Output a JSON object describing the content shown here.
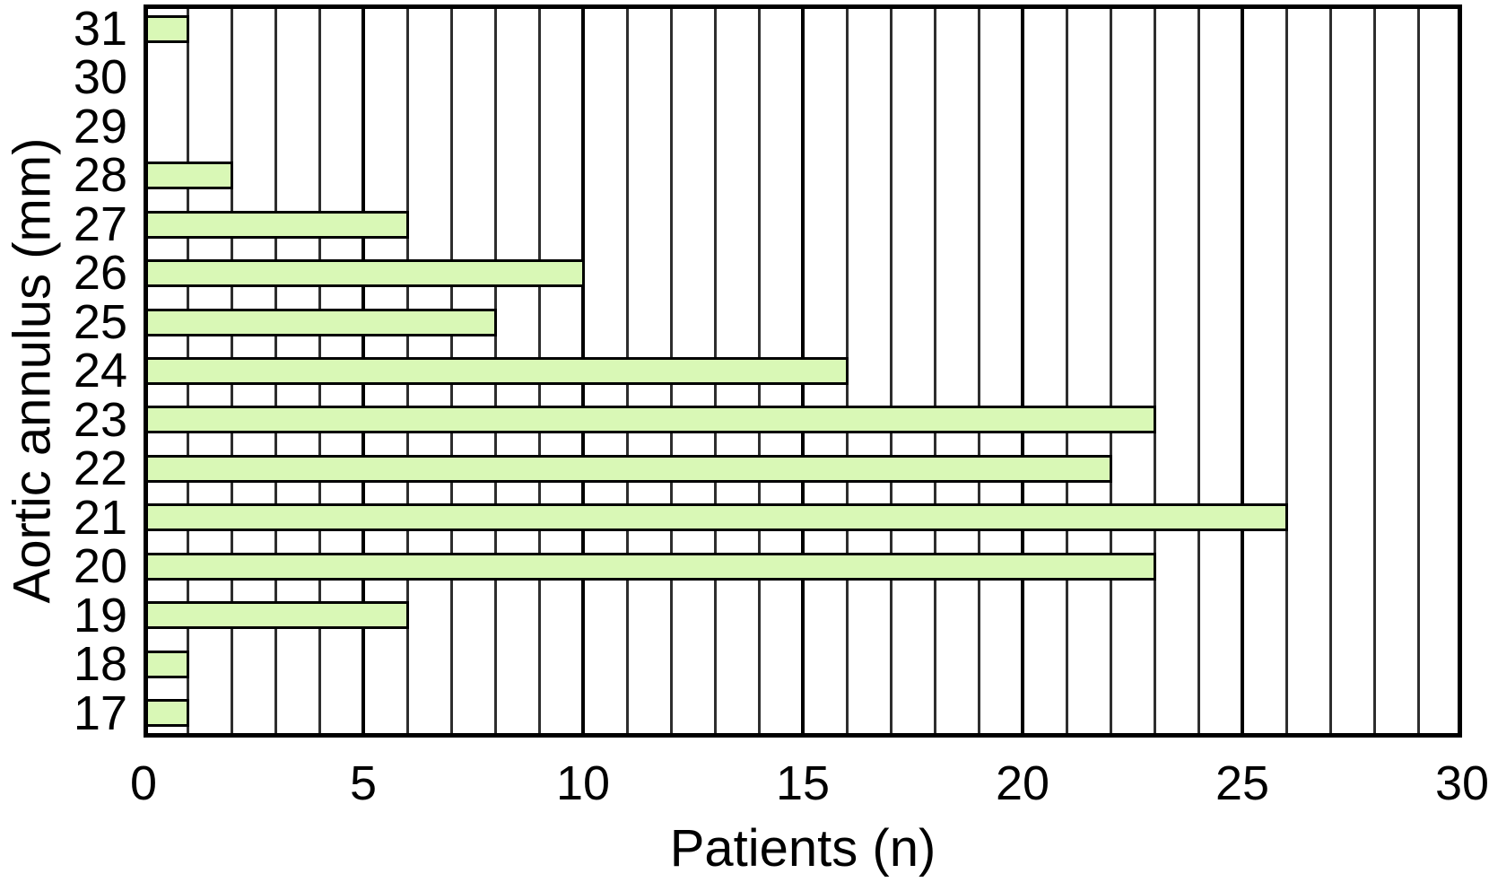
{
  "chart_data": {
    "type": "bar",
    "orientation": "horizontal",
    "title": "",
    "xlabel": "Patients (n)",
    "ylabel": "Aortic annulus (mm)",
    "categories_top_to_bottom": [
      "31",
      "30",
      "29",
      "28",
      "27",
      "26",
      "25",
      "24",
      "23",
      "22",
      "21",
      "20",
      "19",
      "18",
      "17"
    ],
    "values": [
      1,
      0,
      0,
      2,
      6,
      10,
      8,
      16,
      23,
      22,
      26,
      23,
      6,
      1,
      1
    ],
    "x_ticks": [
      0,
      5,
      10,
      15,
      20,
      25,
      30
    ],
    "xlim": [
      0,
      30
    ],
    "grid": {
      "vertical_minor_every": 1,
      "vertical_major_every": 5,
      "horizontal": false
    },
    "legend": "none",
    "colors": {
      "bar_fill": "#d9f8b6",
      "bar_border": "#000000",
      "grid_minor": "#2e2e2e",
      "grid_major": "#000000",
      "plot_border": "#000000",
      "background": "#ffffff",
      "text": "#000000"
    }
  }
}
